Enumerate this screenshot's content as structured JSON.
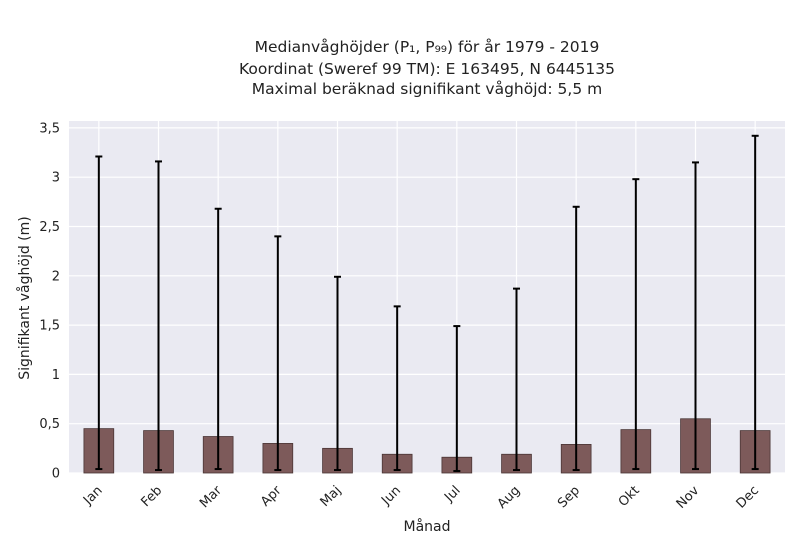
{
  "chart_data": {
    "type": "bar",
    "title": [
      "Medianvåghöjder (P₁, P₉₉) för år 1979 - 2019",
      "Koordinat (Sweref 99 TM): E 163495, N 6445135",
      "Maximal beräknad signifikant våghöjd: 5,5 m"
    ],
    "xlabel": "Månad",
    "ylabel": "Signifikant våghöjd (m)",
    "categories": [
      "Jan",
      "Feb",
      "Mar",
      "Apr",
      "Maj",
      "Jun",
      "Jul",
      "Aug",
      "Sep",
      "Okt",
      "Nov",
      "Dec"
    ],
    "values": [
      0.45,
      0.43,
      0.37,
      0.3,
      0.25,
      0.19,
      0.16,
      0.19,
      0.29,
      0.44,
      0.55,
      0.43
    ],
    "p1": [
      0.04,
      0.03,
      0.04,
      0.03,
      0.03,
      0.03,
      0.02,
      0.03,
      0.03,
      0.04,
      0.04,
      0.04
    ],
    "p99": [
      3.21,
      3.16,
      2.68,
      2.4,
      1.99,
      1.69,
      1.49,
      1.87,
      2.7,
      2.98,
      3.15,
      3.42
    ],
    "ylim": [
      0,
      3.57
    ],
    "yticks": [
      "0",
      "0,5",
      "1",
      "1,5",
      "2",
      "2,5",
      "3",
      "3,5"
    ],
    "ytick_values": [
      0,
      0.5,
      1,
      1.5,
      2,
      2.5,
      3,
      3.5
    ],
    "grid": true,
    "colors": {
      "bar": "#7d5a5a",
      "bar_edge": "#4a3535",
      "errorbar": "#000000",
      "plot_bg": "#eaeaf2",
      "grid": "#ffffff"
    }
  }
}
